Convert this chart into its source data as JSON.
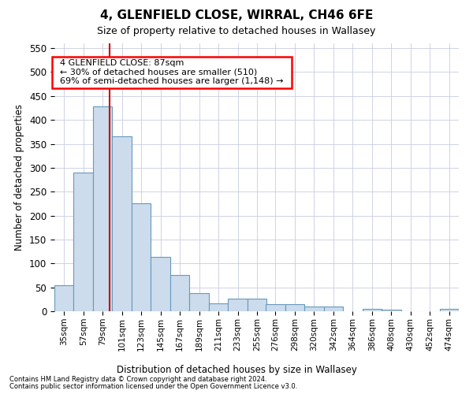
{
  "title": "4, GLENFIELD CLOSE, WIRRAL, CH46 6FE",
  "subtitle": "Size of property relative to detached houses in Wallasey",
  "xlabel": "Distribution of detached houses by size in Wallasey",
  "ylabel": "Number of detached properties",
  "footer_line1": "Contains HM Land Registry data © Crown copyright and database right 2024.",
  "footer_line2": "Contains public sector information licensed under the Open Government Licence v3.0.",
  "annotation_title": "4 GLENFIELD CLOSE: 87sqm",
  "annotation_line2": "← 30% of detached houses are smaller (510)",
  "annotation_line3": "69% of semi-detached houses are larger (1,148) →",
  "bar_color": "#ccdcec",
  "bar_edge_color": "#6699bb",
  "vline_color": "#cc0000",
  "vline_x": 87,
  "categories": [
    35,
    57,
    79,
    101,
    123,
    145,
    167,
    189,
    211,
    233,
    255,
    276,
    298,
    320,
    342,
    364,
    386,
    408,
    430,
    452,
    474
  ],
  "values": [
    55,
    290,
    428,
    365,
    225,
    113,
    75,
    38,
    17,
    27,
    27,
    15,
    15,
    10,
    10,
    0,
    5,
    4,
    0,
    0,
    5
  ],
  "bin_width": 22,
  "ylim": [
    0,
    560
  ],
  "yticks": [
    0,
    50,
    100,
    150,
    200,
    250,
    300,
    350,
    400,
    450,
    500,
    550
  ],
  "background_color": "#ffffff",
  "grid_color": "#c8cce0"
}
